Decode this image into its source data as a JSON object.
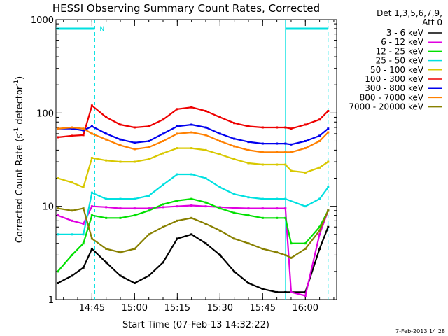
{
  "chart_data": {
    "type": "line",
    "title": "HESSI Observing Summary Count Rates, Corrected",
    "xlabel": "Start Time (07-Feb-13 14:32:22)",
    "ylabel_main": "Corrected Count Rate (s",
    "ylabel_sup1": "-1",
    "ylabel_mid": " detector",
    "ylabel_sup2": "-1",
    "ylabel_end": ")",
    "y_scale": "log",
    "ylim": [
      1,
      1000
    ],
    "xlim": [
      "14:32:22",
      "16:11:00"
    ],
    "x_ticks": [
      "14:45",
      "15:00",
      "15:15",
      "15:30",
      "15:45",
      "16:00"
    ],
    "y_ticks": [
      "1",
      "10",
      "100",
      "1000"
    ],
    "legend_header": [
      "Det 1,3,5,6,7,9,",
      "Att 0"
    ],
    "legend_position": "right",
    "flags": [
      {
        "label": "N",
        "from": "14:32:22",
        "to": "14:46:00"
      },
      {
        "label": "",
        "from": "15:53:00",
        "to": "16:08:00"
      }
    ],
    "series": [
      {
        "name": "3 - 6 keV",
        "color": "#000000",
        "x": [
          "14:33",
          "14:38",
          "14:42",
          "14:45",
          "14:50",
          "14:55",
          "15:00",
          "15:05",
          "15:10",
          "15:15",
          "15:20",
          "15:25",
          "15:30",
          "15:35",
          "15:40",
          "15:45",
          "15:50",
          "15:53",
          "16:00",
          "16:05",
          "16:08"
        ],
        "y": [
          1.5,
          1.8,
          2.2,
          3.5,
          2.5,
          1.8,
          1.5,
          1.8,
          2.5,
          4.5,
          5.0,
          4.0,
          3.0,
          2.0,
          1.5,
          1.3,
          1.2,
          1.2,
          1.2,
          3.5,
          6.0
        ]
      },
      {
        "name": "6 - 12 keV",
        "color": "#e000e0",
        "x": [
          "14:33",
          "14:38",
          "14:42",
          "14:45",
          "14:50",
          "14:55",
          "15:00",
          "15:05",
          "15:10",
          "15:15",
          "15:20",
          "15:25",
          "15:30",
          "15:35",
          "15:40",
          "15:45",
          "15:50",
          "15:53",
          "15:55",
          "16:00",
          "16:05",
          "16:08"
        ],
        "y": [
          8.0,
          7.0,
          6.5,
          10.0,
          9.8,
          9.5,
          9.5,
          9.5,
          9.8,
          10.0,
          10.2,
          10.0,
          9.8,
          9.6,
          9.5,
          9.5,
          9.5,
          9.5,
          1.2,
          1.1,
          5.0,
          9.0
        ]
      },
      {
        "name": "12 - 25 keV",
        "color": "#00e000",
        "x": [
          "14:33",
          "14:38",
          "14:42",
          "14:45",
          "14:50",
          "14:55",
          "15:00",
          "15:05",
          "15:10",
          "15:15",
          "15:20",
          "15:25",
          "15:30",
          "15:35",
          "15:40",
          "15:45",
          "15:50",
          "15:53",
          "15:55",
          "16:00",
          "16:05",
          "16:08"
        ],
        "y": [
          2.0,
          3.0,
          4.0,
          8.0,
          7.5,
          7.5,
          8.0,
          9.0,
          10.5,
          11.5,
          12.0,
          11.0,
          9.5,
          8.5,
          8.0,
          7.5,
          7.5,
          7.5,
          4.0,
          4.0,
          6.0,
          9.0
        ]
      },
      {
        "name": "25 - 50 keV",
        "color": "#00e0e0",
        "x": [
          "14:33",
          "14:38",
          "14:42",
          "14:45",
          "14:50",
          "14:55",
          "15:00",
          "15:05",
          "15:10",
          "15:15",
          "15:20",
          "15:25",
          "15:30",
          "15:35",
          "15:40",
          "15:45",
          "15:50",
          "15:53",
          "16:00",
          "16:05",
          "16:08"
        ],
        "y": [
          5.0,
          5.0,
          5.0,
          14.0,
          12.0,
          12.0,
          12.0,
          13.0,
          17.0,
          22.0,
          22.0,
          20.0,
          16.0,
          13.5,
          12.5,
          12.0,
          12.0,
          12.0,
          10.0,
          12.0,
          16.0
        ]
      },
      {
        "name": "50 - 100 keV",
        "color": "#d8c800",
        "x": [
          "14:33",
          "14:38",
          "14:42",
          "14:45",
          "14:50",
          "14:55",
          "15:00",
          "15:05",
          "15:10",
          "15:15",
          "15:20",
          "15:25",
          "15:30",
          "15:35",
          "15:40",
          "15:45",
          "15:50",
          "15:53",
          "15:55",
          "16:00",
          "16:05",
          "16:08"
        ],
        "y": [
          20.0,
          18.0,
          16.0,
          33.0,
          31.0,
          30.0,
          30.0,
          32.0,
          37.0,
          42.0,
          42.0,
          40.0,
          36.0,
          32.0,
          29.0,
          28.0,
          28.0,
          28.0,
          24.0,
          23.0,
          26.0,
          30.0
        ]
      },
      {
        "name": "100 - 300 keV",
        "color": "#ee0000",
        "x": [
          "14:33",
          "14:38",
          "14:42",
          "14:45",
          "14:50",
          "14:55",
          "15:00",
          "15:05",
          "15:10",
          "15:15",
          "15:20",
          "15:25",
          "15:30",
          "15:35",
          "15:40",
          "15:45",
          "15:50",
          "15:53",
          "15:55",
          "16:00",
          "16:05",
          "16:08"
        ],
        "y": [
          55.0,
          57.0,
          58.0,
          120.0,
          90.0,
          75.0,
          70.0,
          72.0,
          85.0,
          110.0,
          115.0,
          105.0,
          90.0,
          78.0,
          72.0,
          70.0,
          70.0,
          70.0,
          68.0,
          75.0,
          85.0,
          105.0
        ]
      },
      {
        "name": "300 - 800 keV",
        "color": "#0000ee",
        "x": [
          "14:33",
          "14:38",
          "14:42",
          "14:45",
          "14:50",
          "14:55",
          "15:00",
          "15:05",
          "15:10",
          "15:15",
          "15:20",
          "15:25",
          "15:30",
          "15:35",
          "15:40",
          "15:45",
          "15:50",
          "15:53",
          "15:55",
          "16:00",
          "16:05",
          "16:08"
        ],
        "y": [
          68.0,
          68.0,
          65.0,
          72.0,
          60.0,
          52.0,
          48.0,
          50.0,
          60.0,
          72.0,
          75.0,
          70.0,
          60.0,
          53.0,
          49.0,
          47.0,
          47.0,
          47.0,
          46.0,
          50.0,
          57.0,
          68.0
        ]
      },
      {
        "name": "800 - 7000 keV",
        "color": "#ff8000",
        "x": [
          "14:33",
          "14:38",
          "14:42",
          "14:45",
          "14:50",
          "14:55",
          "15:00",
          "15:05",
          "15:10",
          "15:15",
          "15:20",
          "15:25",
          "15:30",
          "15:35",
          "15:40",
          "15:45",
          "15:50",
          "15:53",
          "15:55",
          "16:00",
          "16:05",
          "16:08"
        ],
        "y": [
          68.0,
          70.0,
          68.0,
          60.0,
          52.0,
          45.0,
          41.0,
          43.0,
          50.0,
          60.0,
          62.0,
          58.0,
          50.0,
          44.0,
          40.0,
          38.0,
          38.0,
          38.0,
          38.0,
          42.0,
          50.0,
          62.0
        ]
      },
      {
        "name": "7000 - 20000 keV",
        "color": "#888000",
        "x": [
          "14:33",
          "14:38",
          "14:42",
          "14:45",
          "14:50",
          "14:55",
          "15:00",
          "15:05",
          "15:10",
          "15:15",
          "15:20",
          "15:25",
          "15:30",
          "15:35",
          "15:40",
          "15:45",
          "15:50",
          "15:53",
          "15:55",
          "16:00",
          "16:05",
          "16:08"
        ],
        "y": [
          9.5,
          9.0,
          9.5,
          4.5,
          3.5,
          3.2,
          3.5,
          5.0,
          6.0,
          7.0,
          7.5,
          6.5,
          5.5,
          4.5,
          4.0,
          3.5,
          3.2,
          3.0,
          2.8,
          3.5,
          5.5,
          9.0
        ]
      }
    ]
  },
  "footer_date": "7-Feb-2013 14:28"
}
